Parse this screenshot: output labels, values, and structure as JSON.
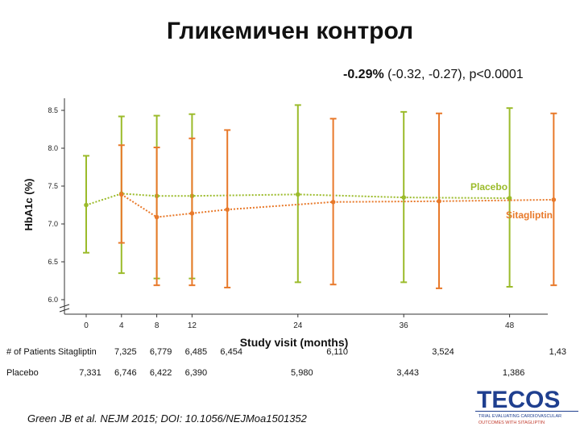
{
  "slide": {
    "title": "Гликемичен контрол",
    "stat_bold": "-0.29%",
    "stat_rest": " (-0.32, -0.27), p<0.0001",
    "footnote": "Green JB et al. NEJM 2015; DOI: 10.1056/NEJMoa1501352",
    "logo": {
      "text": "TECOS",
      "sub1": "TRIAL EVALUATING CARDIOVASCULAR",
      "sub2": "OUTCOMES WITH SITAGLIPTIN"
    }
  },
  "colors": {
    "placebo": "#9bbb2a",
    "sitagliptin": "#e8792a"
  },
  "chart_data": {
    "type": "line",
    "xlabel": "Study visit (months)",
    "ylabel": "HbA1c (%)",
    "ylim": [
      6.0,
      8.5
    ],
    "yticks": [
      "8.5",
      "8.0",
      "7.5",
      "7.0",
      "6.5",
      "6.0"
    ],
    "xticks": [
      0,
      4,
      8,
      12,
      24,
      36,
      48
    ],
    "grid": false,
    "series": [
      {
        "name": "Placebo",
        "x": [
          0,
          4,
          8,
          12,
          24,
          36,
          48
        ],
        "y": [
          7.25,
          7.4,
          7.37,
          7.37,
          7.39,
          7.35,
          7.34
        ],
        "err_low": [
          6.62,
          6.35,
          6.28,
          6.28,
          6.23,
          6.23,
          6.17
        ],
        "err_high": [
          7.9,
          8.42,
          8.43,
          8.45,
          8.57,
          8.48,
          8.53
        ]
      },
      {
        "name": "Sitagliptin",
        "x": [
          4,
          8,
          12,
          16,
          28,
          40,
          53
        ],
        "y": [
          7.39,
          7.09,
          7.14,
          7.19,
          7.29,
          7.3,
          7.32
        ],
        "err_low": [
          6.75,
          6.19,
          6.19,
          6.16,
          6.2,
          6.15,
          6.19
        ],
        "err_high": [
          8.04,
          8.01,
          8.13,
          8.24,
          8.39,
          8.46,
          8.46
        ]
      }
    ],
    "patients_header": "# of Patients",
    "patients": [
      {
        "label": "Sitagliptin",
        "x": [
          4,
          8,
          12,
          16,
          28,
          40,
          53
        ],
        "counts": [
          "7,325",
          "6,779",
          "6,485",
          "6,454",
          "6,110",
          "3,524",
          "1,43"
        ]
      },
      {
        "label": "Placebo",
        "x": [
          0,
          4,
          8,
          12,
          24,
          36,
          48
        ],
        "counts": [
          "7,331",
          "6,746",
          "6,422",
          "6,390",
          "5,980",
          "3,443",
          "1,386"
        ]
      }
    ]
  }
}
